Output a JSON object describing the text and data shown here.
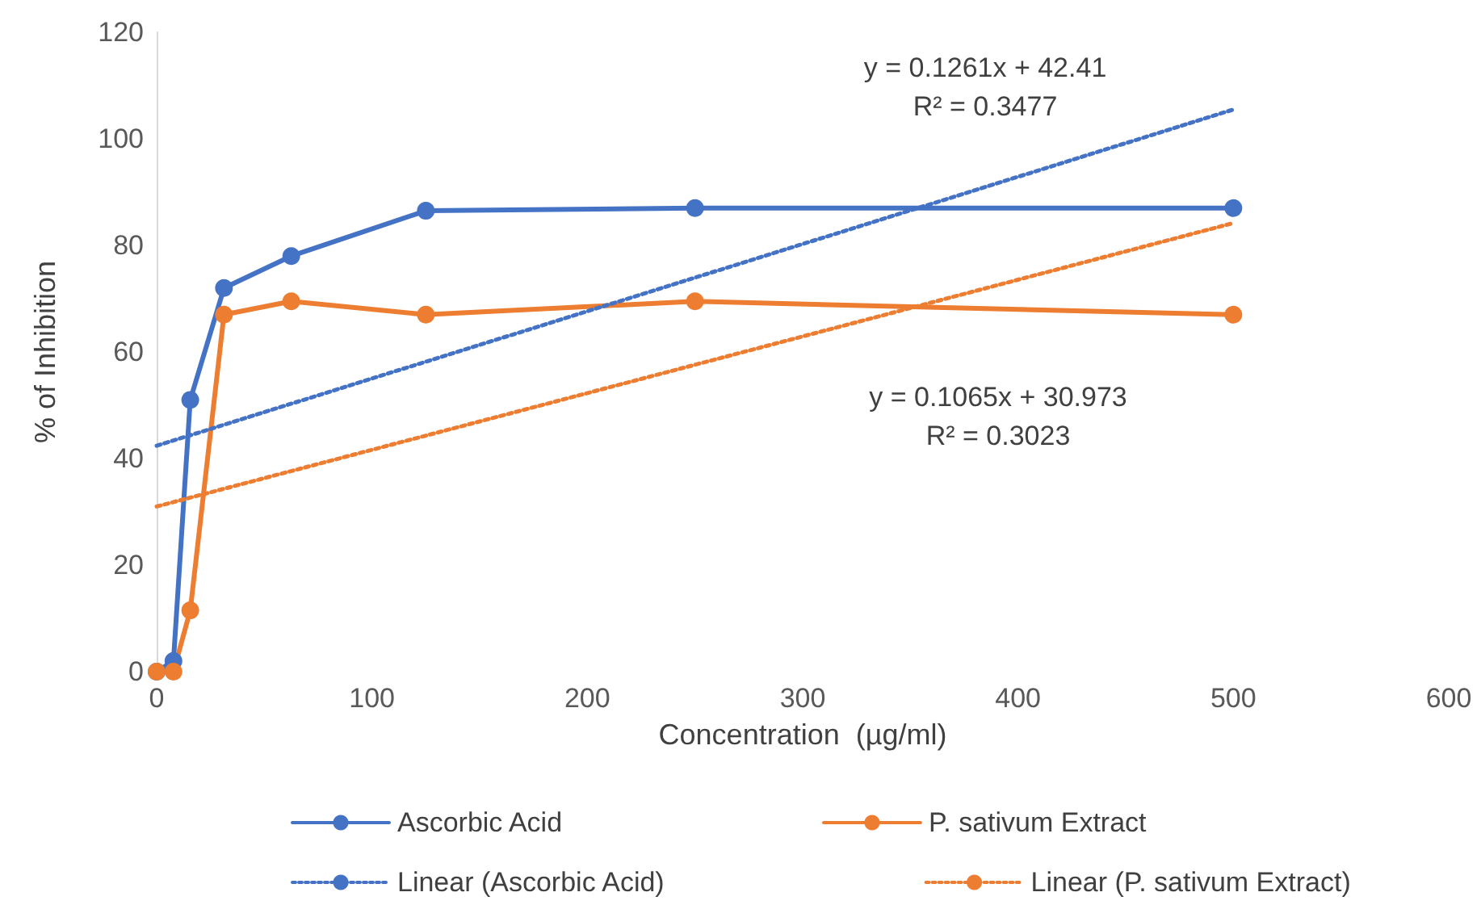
{
  "chart_data": {
    "type": "line",
    "xlabel": "Concentration  (µg/ml)",
    "ylabel": "% of Inhibition",
    "xlim": [
      0,
      600
    ],
    "xticks": [
      0,
      100,
      200,
      300,
      400,
      500,
      600
    ],
    "ylim": [
      0,
      120
    ],
    "yticks": [
      0,
      20,
      40,
      60,
      80,
      100,
      120
    ],
    "grid": false,
    "legend": "bottom",
    "series": [
      {
        "name": "Ascorbic Acid",
        "color": "#4472c4",
        "marker": "circle",
        "line_style": "solid",
        "x": [
          0,
          7.8,
          15.6,
          31.25,
          62.5,
          125,
          250,
          500
        ],
        "values": [
          0,
          2,
          51,
          72,
          78,
          86.5,
          87,
          87
        ]
      },
      {
        "name": "P. sativum Extract",
        "color": "#ed7d31",
        "marker": "circle",
        "line_style": "solid",
        "x": [
          0,
          7.8,
          15.6,
          31.25,
          62.5,
          125,
          250,
          500
        ],
        "values": [
          0,
          0,
          11.5,
          67,
          69.5,
          67,
          69.5,
          67
        ]
      },
      {
        "name": "Linear (Ascorbic Acid)",
        "color": "#4472c4",
        "marker": "none",
        "line_style": "dotted",
        "x": [
          0,
          500
        ],
        "values": [
          42.4,
          105.5
        ]
      },
      {
        "name": "Linear (P. sativum Extract)",
        "color": "#ed7d31",
        "marker": "none",
        "line_style": "dotted",
        "x": [
          0,
          500
        ],
        "values": [
          31,
          84.2
        ]
      }
    ],
    "annotations": [
      "y = 0.1261x + 42.41\nR² = 0.3477",
      "y = 0.1065x + 30.973\nR² = 0.3023"
    ]
  }
}
